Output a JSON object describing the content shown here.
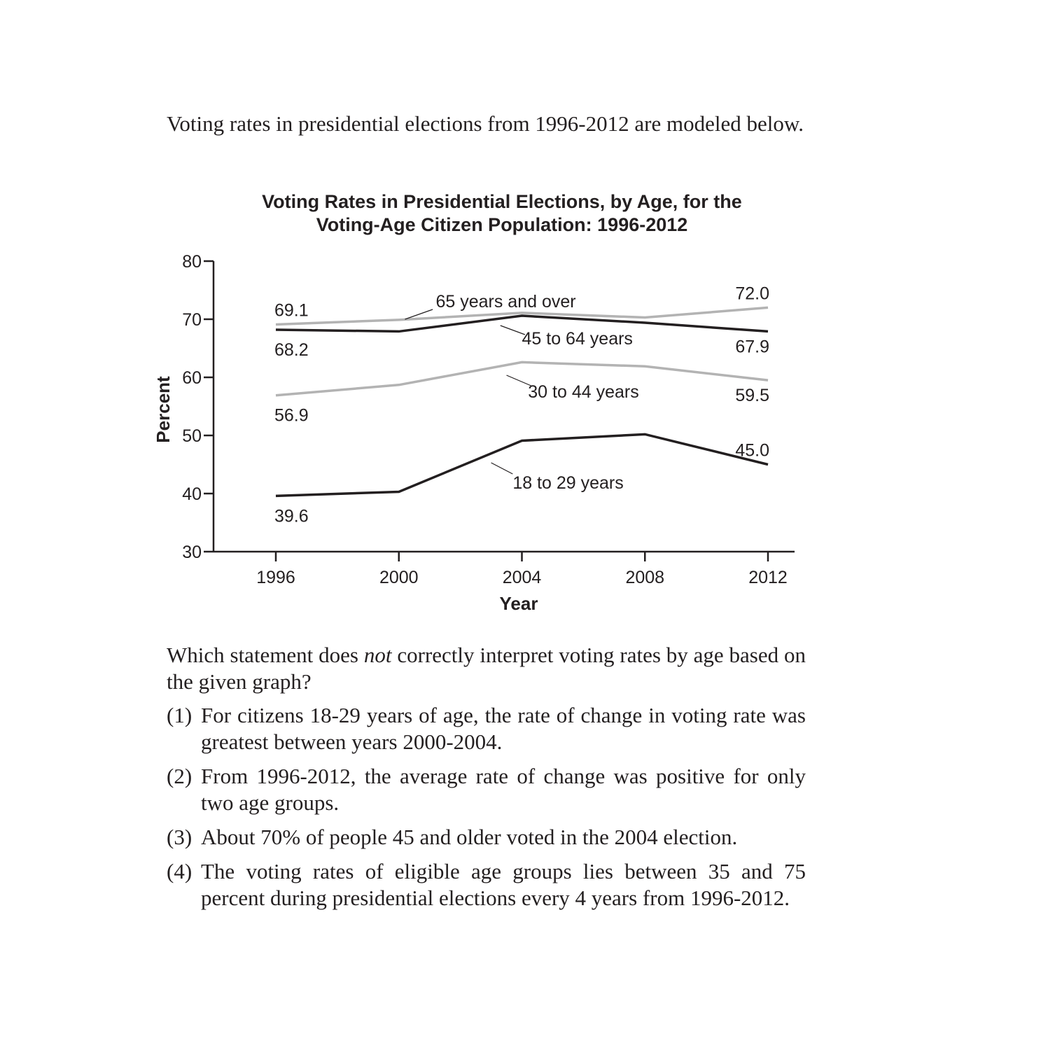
{
  "intro": "Voting rates in presidential elections from 1996-2012 are modeled below.",
  "question": {
    "before": "Which statement does ",
    "emph": "not",
    "after": " correctly interpret voting rates by age based on the given graph?"
  },
  "options": [
    {
      "num": "(1)",
      "text": "For citizens 18-29 years of age, the rate of change in voting rate was greatest between years 2000-2004."
    },
    {
      "num": "(2)",
      "text": "From 1996-2012, the average rate of change was positive for only two age groups."
    },
    {
      "num": "(3)",
      "text": "About 70% of people 45 and older voted in the 2004 election."
    },
    {
      "num": "(4)",
      "text": "The voting rates of eligible age groups lies between 35 and 75 percent during presidential elections every 4 years from 1996-2012."
    }
  ],
  "chart_data": {
    "type": "line",
    "title_lines": [
      "Voting Rates in Presidential Elections, by Age, for the",
      "Voting-Age Citizen Population: 1996-2012"
    ],
    "xlabel": "Year",
    "ylabel": "Percent",
    "x": [
      1996,
      2000,
      2004,
      2008,
      2012
    ],
    "x_ticks": [
      "1996",
      "2000",
      "2004",
      "2008",
      "2012"
    ],
    "y_ticks": [
      "30",
      "40",
      "50",
      "60",
      "70",
      "80"
    ],
    "ylim": [
      30,
      80
    ],
    "grid": false,
    "series": [
      {
        "name": "65 years and over",
        "color": "#b3b3b3",
        "values": [
          69.1,
          69.9,
          71.1,
          70.3,
          72.0
        ],
        "start_label": "69.1",
        "end_label": "72.0"
      },
      {
        "name": "45 to 64 years",
        "color": "#231f20",
        "values": [
          68.2,
          67.9,
          70.6,
          69.4,
          67.9
        ],
        "start_label": "68.2",
        "end_label": "67.9"
      },
      {
        "name": "30 to 44 years",
        "color": "#b3b3b3",
        "values": [
          56.9,
          58.7,
          62.6,
          61.9,
          59.5
        ],
        "start_label": "56.9",
        "end_label": "59.5"
      },
      {
        "name": "18 to 29 years",
        "color": "#231f20",
        "values": [
          39.6,
          40.3,
          49.1,
          50.2,
          45.0
        ],
        "start_label": "39.6",
        "end_label": "45.0"
      }
    ]
  }
}
